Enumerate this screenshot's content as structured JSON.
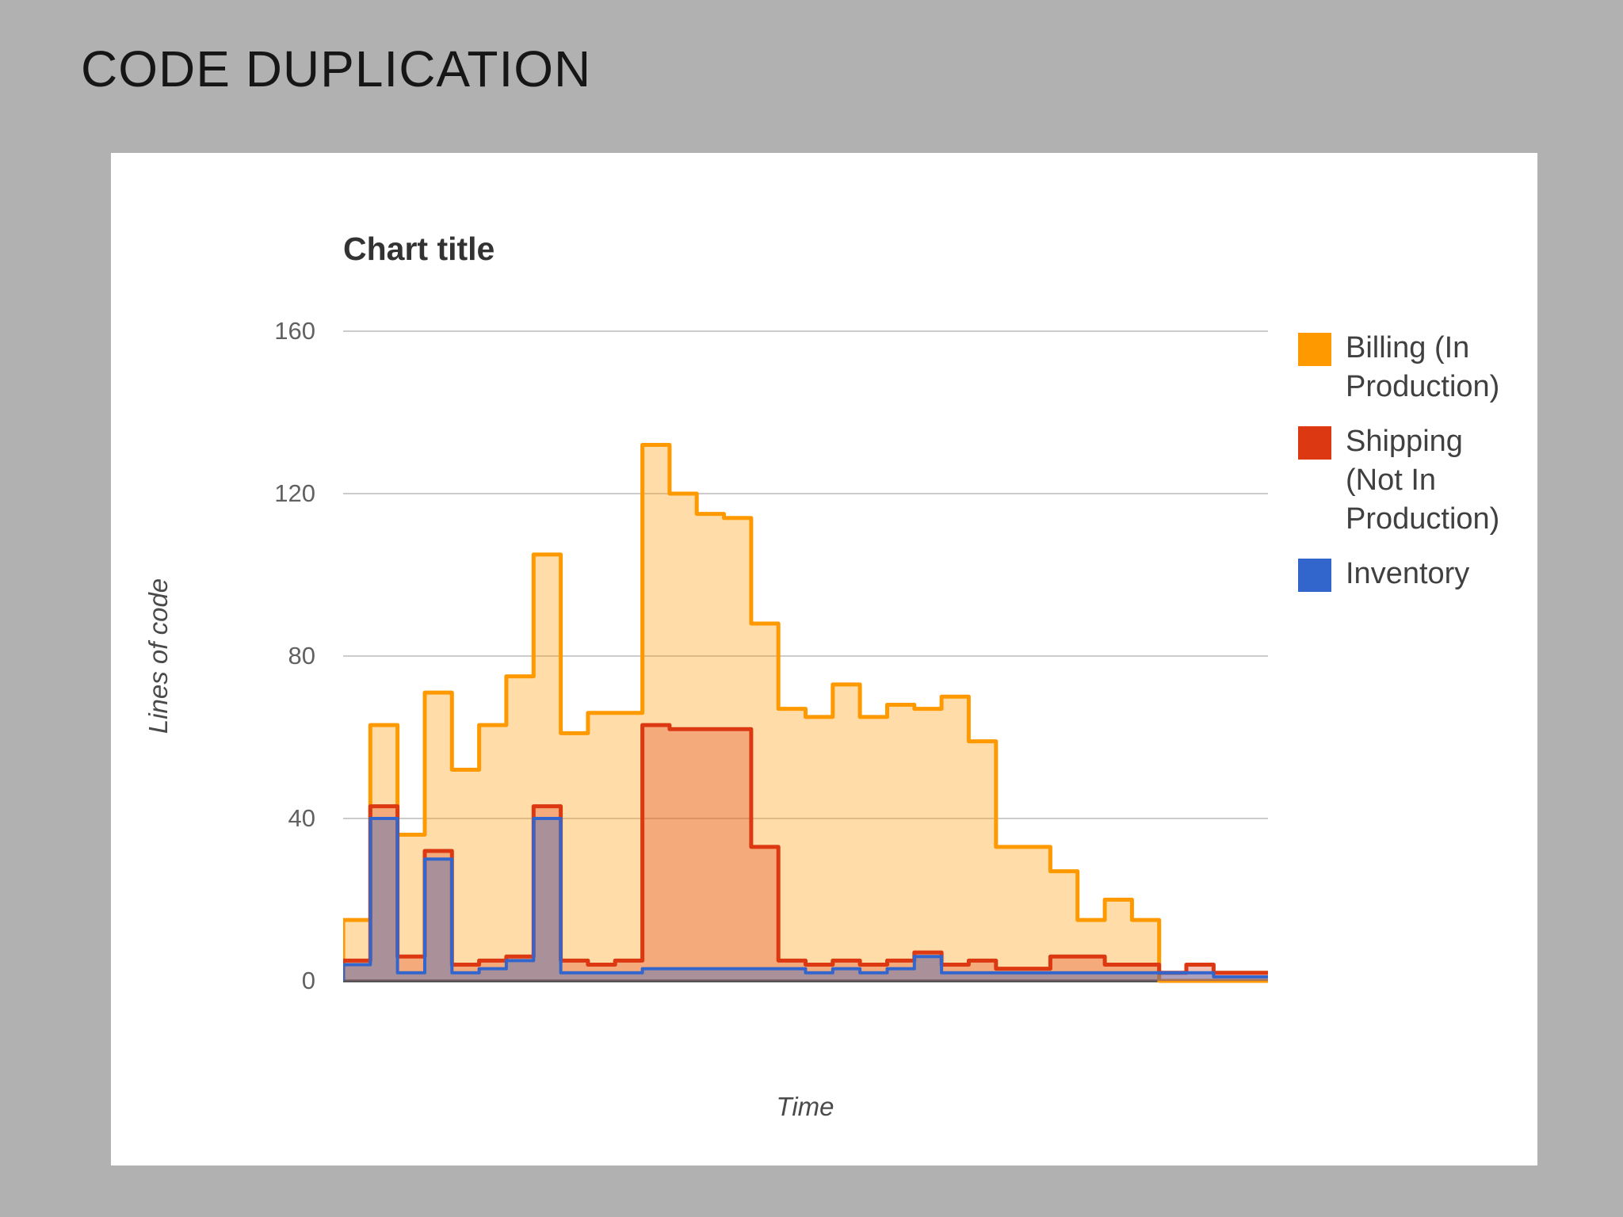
{
  "slide": {
    "title": "CODE DUPLICATION"
  },
  "chart": {
    "title": "Chart title",
    "x_axis_title": "Time",
    "y_axis_title": "Lines of code"
  },
  "chart_data": {
    "type": "area",
    "variant": "stepped-area",
    "title": "Chart title",
    "xlabel": "Time",
    "ylabel": "Lines of code",
    "ylim": [
      0,
      160
    ],
    "yticks": [
      0,
      40,
      80,
      120,
      160
    ],
    "x_tick_labels": [],
    "grid": true,
    "legend_position": "right",
    "axis_colors": {
      "gridline": "#cccccc",
      "baseline": "#454545",
      "tick_text": "#616161"
    },
    "series": [
      {
        "name": "Billing (In Production)",
        "color": "#ff9900",
        "fill_opacity": 0.34,
        "stroke_width": 5,
        "values": [
          15,
          63,
          36,
          71,
          52,
          63,
          75,
          105,
          61,
          66,
          66,
          132,
          120,
          115,
          114,
          88,
          67,
          65,
          73,
          65,
          68,
          67,
          70,
          59,
          33,
          33,
          27,
          15,
          20,
          15,
          0,
          0,
          0,
          0
        ]
      },
      {
        "name": "Shipping (Not In Production)",
        "color": "#dc3912",
        "fill_opacity": 0.3,
        "stroke_width": 5,
        "values": [
          5,
          43,
          6,
          32,
          4,
          5,
          6,
          43,
          5,
          4,
          5,
          63,
          62,
          62,
          62,
          33,
          5,
          4,
          5,
          4,
          5,
          7,
          4,
          5,
          3,
          3,
          6,
          6,
          4,
          4,
          2,
          4,
          2,
          2
        ]
      },
      {
        "name": "Inventory",
        "color": "#3366cc",
        "fill_opacity": 0.38,
        "stroke_width": 4,
        "values": [
          4,
          40,
          2,
          30,
          2,
          3,
          5,
          40,
          2,
          2,
          2,
          3,
          3,
          3,
          3,
          3,
          3,
          2,
          3,
          2,
          3,
          6,
          2,
          2,
          2,
          2,
          2,
          2,
          2,
          2,
          2,
          2,
          1,
          1
        ]
      }
    ]
  }
}
